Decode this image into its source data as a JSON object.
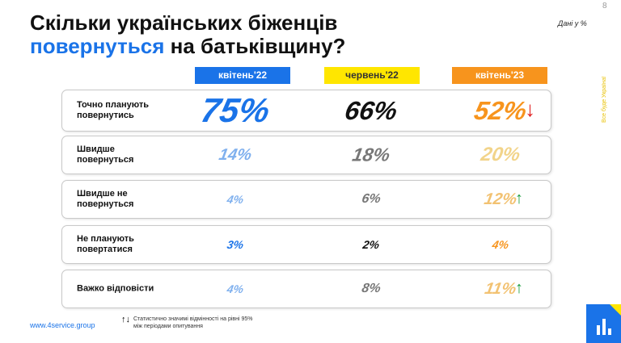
{
  "page_number": "8",
  "title": {
    "line1": "Скільки українських біженців",
    "line2_accent": "повернуться",
    "line2_rest": " на батьківщину?"
  },
  "unit_note": "Дані у %",
  "side_text": "Все буде Україна!",
  "columns": [
    "квітень'22",
    "червень'22",
    "квітень'23"
  ],
  "rows": [
    {
      "label": "Точно планують повернутись",
      "values": [
        "75%",
        "66%",
        "52%"
      ],
      "trend": "down"
    },
    {
      "label": "Швидше повернуться",
      "values": [
        "14%",
        "18%",
        "20%"
      ],
      "trend": ""
    },
    {
      "label": "Швидше не повернуться",
      "values": [
        "4%",
        "6%",
        "12%"
      ],
      "trend": "up"
    },
    {
      "label": "Не планують повертатися",
      "values": [
        "3%",
        "2%",
        "4%"
      ],
      "trend": ""
    },
    {
      "label": "Важко відповісти",
      "values": [
        "4%",
        "8%",
        "11%"
      ],
      "trend": "up"
    }
  ],
  "colors": {
    "blue": "#1a73e8",
    "yellow": "#ffe600",
    "orange": "#f7941d",
    "up_arrow": "#1b9e3e",
    "down_arrow": "#e02020"
  },
  "footer": {
    "website": "www.4service.group",
    "legend_arrows": "↑↓",
    "legend_text": "Статистично значимі відмінності на рівні 95% між періодами опитування"
  }
}
